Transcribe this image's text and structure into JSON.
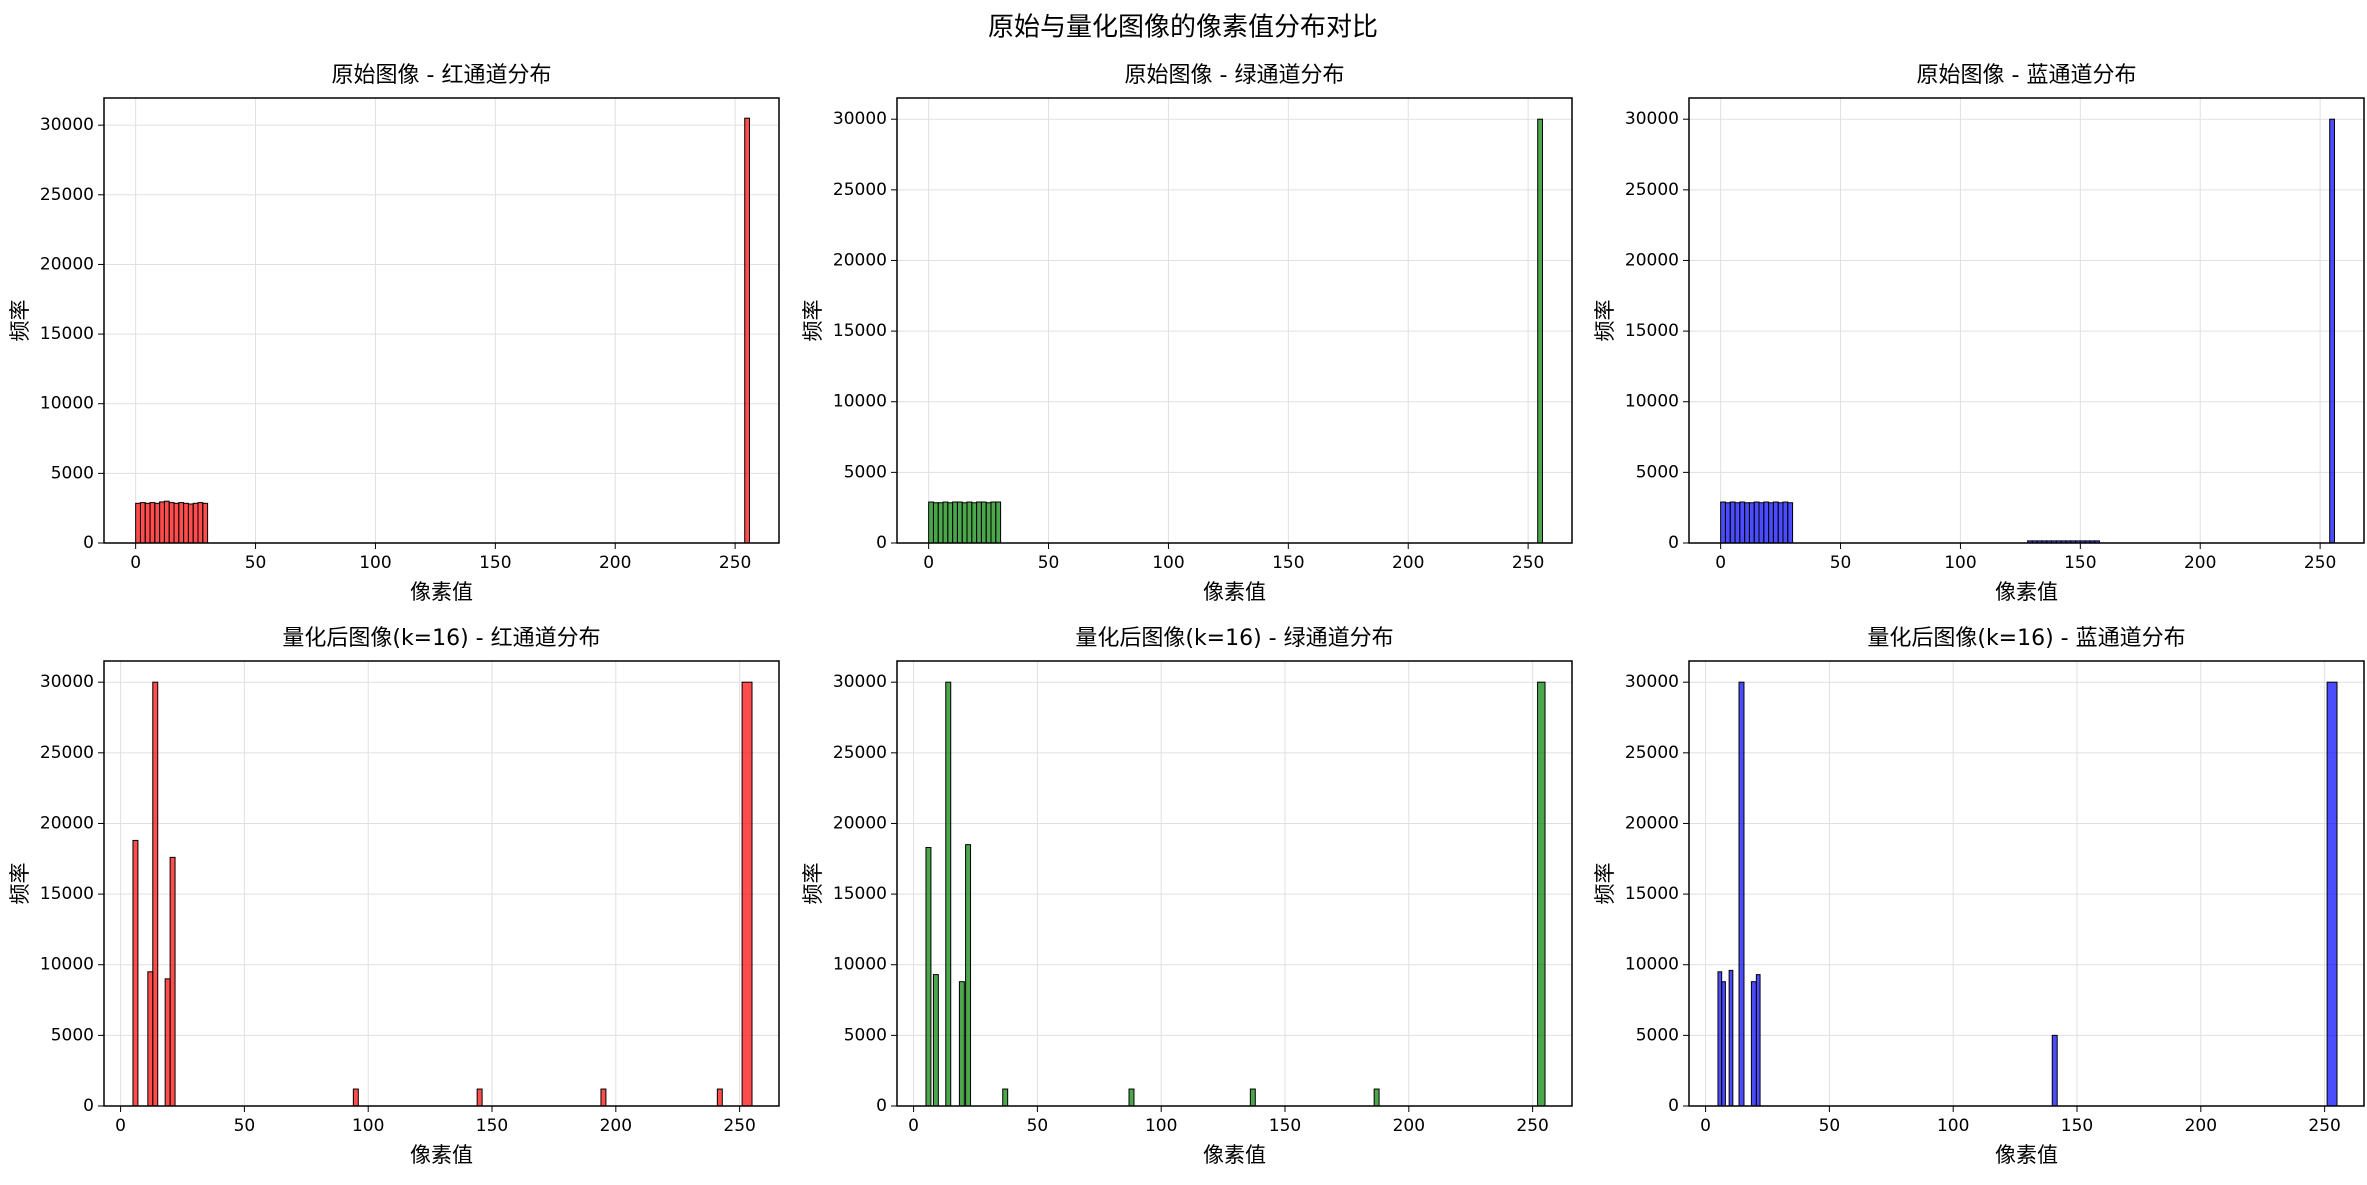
{
  "title": "原始与量化图像的像素值分布对比",
  "chart_data": [
    {
      "type": "histogram",
      "title": "原始图像 - 红通道分布",
      "xlabel": "像素值",
      "ylabel": "频率",
      "bins": [
        0,
        2,
        4,
        6,
        8,
        10,
        12,
        14,
        16,
        18,
        20,
        22,
        24,
        26,
        28,
        30,
        254,
        256
      ],
      "counts": [
        2850,
        2900,
        2850,
        2900,
        2850,
        2950,
        3000,
        2900,
        2850,
        2900,
        2850,
        2800,
        2850,
        2900,
        2850,
        0,
        30500
      ],
      "color": "#ff0000",
      "alpha": 0.7,
      "edgecolor": "#000000",
      "xlim": [
        -13.2,
        268.3
      ],
      "ylim": [
        0,
        31950
      ],
      "xticks": [
        0,
        50,
        100,
        150,
        200,
        250
      ],
      "yticks": [
        0,
        5000,
        10000,
        15000,
        20000,
        25000,
        30000
      ],
      "grid": true
    },
    {
      "type": "histogram",
      "title": "原始图像 - 绿通道分布",
      "xlabel": "像素值",
      "ylabel": "频率",
      "bins": [
        0,
        2,
        4,
        6,
        8,
        10,
        12,
        14,
        16,
        18,
        20,
        22,
        24,
        26,
        28,
        30,
        254,
        256
      ],
      "counts": [
        2900,
        2850,
        2850,
        2900,
        2850,
        2900,
        2900,
        2850,
        2900,
        2850,
        2900,
        2900,
        2850,
        2900,
        2900,
        0,
        30000
      ],
      "color": "#008000",
      "alpha": 0.7,
      "edgecolor": "#000000",
      "xlim": [
        -13.2,
        268.3
      ],
      "ylim": [
        0,
        31500
      ],
      "xticks": [
        0,
        50,
        100,
        150,
        200,
        250
      ],
      "yticks": [
        0,
        5000,
        10000,
        15000,
        20000,
        25000,
        30000
      ],
      "grid": true
    },
    {
      "type": "histogram",
      "title": "原始图像 - 蓝通道分布",
      "xlabel": "像素值",
      "ylabel": "频率",
      "bins": [
        0,
        2,
        4,
        6,
        8,
        10,
        12,
        14,
        16,
        18,
        20,
        22,
        24,
        26,
        28,
        30,
        128,
        130,
        132,
        134,
        136,
        138,
        140,
        142,
        144,
        146,
        148,
        150,
        152,
        154,
        156,
        158,
        254,
        256
      ],
      "counts": [
        2900,
        2850,
        2900,
        2850,
        2900,
        2850,
        2850,
        2900,
        2850,
        2900,
        2850,
        2900,
        2850,
        2900,
        2850,
        0,
        150,
        150,
        150,
        150,
        150,
        150,
        150,
        150,
        150,
        150,
        150,
        150,
        150,
        150,
        150,
        0,
        30000
      ],
      "color": "#0000ff",
      "alpha": 0.7,
      "edgecolor": "#000000",
      "xlim": [
        -13.2,
        268.3
      ],
      "ylim": [
        0,
        31500
      ],
      "xticks": [
        0,
        50,
        100,
        150,
        200,
        250
      ],
      "yticks": [
        0,
        5000,
        10000,
        15000,
        20000,
        25000,
        30000
      ],
      "grid": true
    },
    {
      "type": "histogram",
      "title": "量化后图像(k=16) - 红通道分布",
      "xlabel": "像素值",
      "ylabel": "频率",
      "bins": [
        5,
        7,
        11,
        13,
        15,
        18,
        20,
        22,
        94,
        96,
        144,
        146,
        194,
        196,
        241,
        243,
        251,
        255
      ],
      "counts": [
        18800,
        0,
        9500,
        30000,
        0,
        9000,
        17600,
        0,
        1200,
        0,
        1200,
        0,
        1200,
        0,
        1200,
        0,
        30000
      ],
      "color": "#ff0000",
      "alpha": 0.7,
      "edgecolor": "#000000",
      "xlim": [
        -6.7,
        265.9
      ],
      "ylim": [
        0,
        31500
      ],
      "xticks": [
        0,
        50,
        100,
        150,
        200,
        250
      ],
      "yticks": [
        0,
        5000,
        10000,
        15000,
        20000,
        25000,
        30000
      ],
      "grid": true
    },
    {
      "type": "histogram",
      "title": "量化后图像(k=16) - 绿通道分布",
      "xlabel": "像素值",
      "ylabel": "频率",
      "bins": [
        5,
        7,
        8,
        10,
        13,
        15,
        18.5,
        20.5,
        21,
        23,
        36,
        38,
        87,
        89,
        136,
        138,
        186,
        188,
        252,
        255
      ],
      "counts": [
        18300,
        0,
        9300,
        0,
        30000,
        0,
        8800,
        0,
        18500,
        0,
        1200,
        0,
        1200,
        0,
        1200,
        0,
        1200,
        0,
        30000
      ],
      "color": "#008000",
      "alpha": 0.7,
      "edgecolor": "#000000",
      "xlim": [
        -6.7,
        265.9
      ],
      "ylim": [
        0,
        31500
      ],
      "xticks": [
        0,
        50,
        100,
        150,
        200,
        250
      ],
      "yticks": [
        0,
        5000,
        10000,
        15000,
        20000,
        25000,
        30000
      ],
      "grid": true
    },
    {
      "type": "histogram",
      "title": "量化后图像(k=16) - 蓝通道分布",
      "xlabel": "像素值",
      "ylabel": "频率",
      "bins": [
        5,
        6.5,
        8,
        9.5,
        11,
        13.5,
        15.5,
        18.5,
        20.5,
        22,
        140,
        142,
        251,
        255
      ],
      "counts": [
        9500,
        8800,
        0,
        9600,
        0,
        30000,
        0,
        8800,
        9300,
        0,
        5000,
        0,
        30000
      ],
      "color": "#0000ff",
      "alpha": 0.7,
      "edgecolor": "#000000",
      "xlim": [
        -6.7,
        265.9
      ],
      "ylim": [
        0,
        31500
      ],
      "xticks": [
        0,
        50,
        100,
        150,
        200,
        250
      ],
      "yticks": [
        0,
        5000,
        10000,
        15000,
        20000,
        25000,
        30000
      ],
      "grid": true
    }
  ]
}
